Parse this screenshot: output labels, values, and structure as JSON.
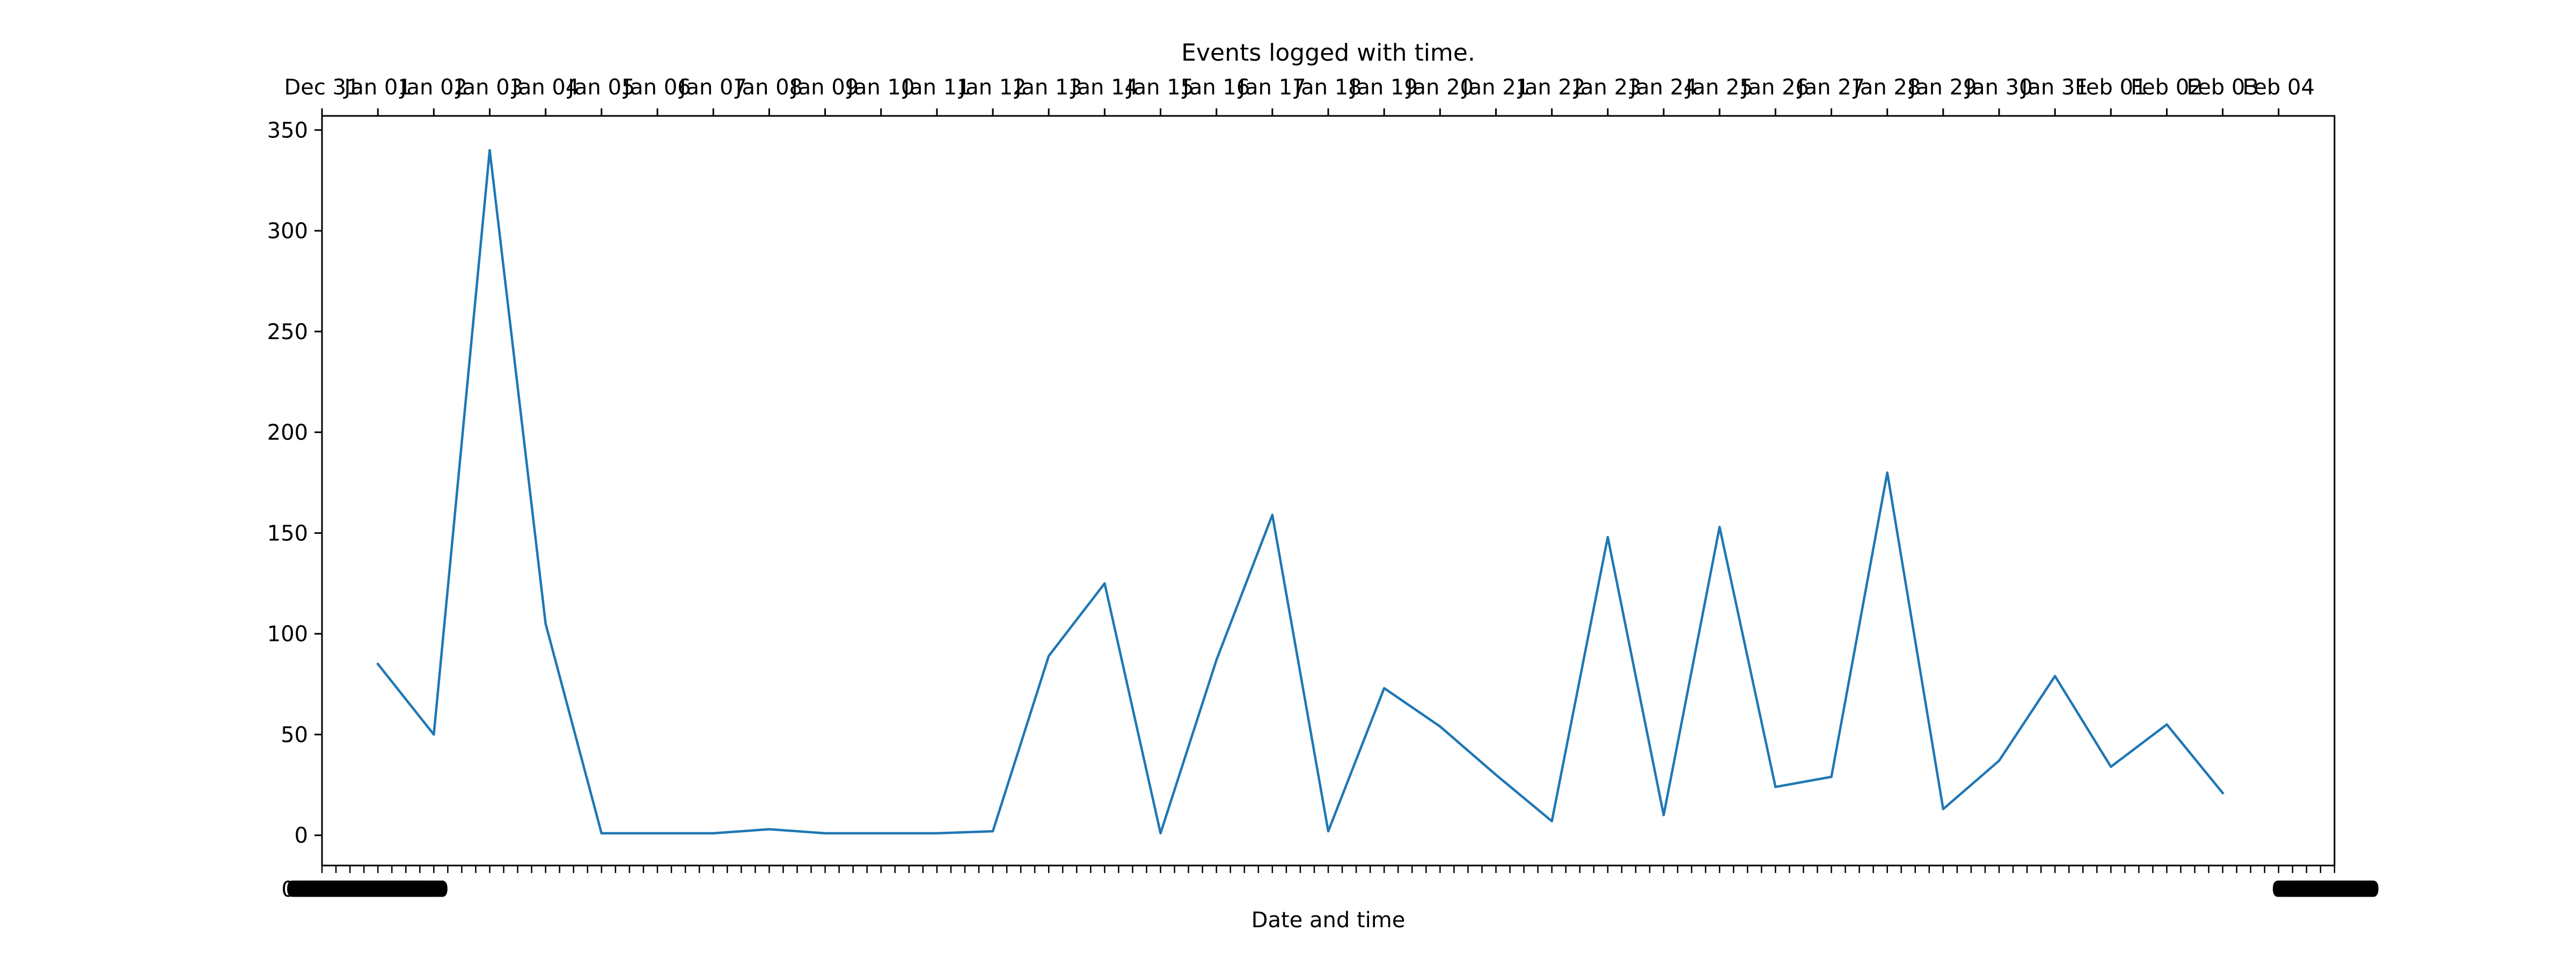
{
  "chart_data": {
    "type": "line",
    "title": "Events logged with time.",
    "xlabel": "Date and time",
    "ylabel": "",
    "grid": false,
    "legend": "none",
    "ylim": [
      -15,
      357
    ],
    "xlim": [
      "Dec 31",
      "Feb 05"
    ],
    "yticks": [
      0,
      50,
      100,
      150,
      200,
      250,
      300,
      350
    ],
    "x_top_ticks": [
      "Dec 31",
      "Jan 01",
      "Jan 02",
      "Jan 03",
      "Jan 04",
      "Jan 05",
      "Jan 06",
      "Jan 07",
      "Jan 08",
      "Jan 09",
      "Jan 10",
      "Jan 11",
      "Jan 12",
      "Jan 13",
      "Jan 14",
      "Jan 15",
      "Jan 16",
      "Jan 17",
      "Jan 18",
      "Jan 19",
      "Jan 20",
      "Jan 21",
      "Jan 22",
      "Jan 23",
      "Jan 24",
      "Jan 25",
      "Jan 26",
      "Jan 27",
      "Jan 28",
      "Jan 29",
      "Jan 30",
      "Jan 31",
      "Feb 01",
      "Feb 02",
      "Feb 03",
      "Feb 04"
    ],
    "x_bottom_tick_labels": [
      "00:00",
      "00:00"
    ],
    "series": [
      {
        "color": "#1f77b4",
        "x": [
          "Jan 01",
          "Jan 02",
          "Jan 03",
          "Jan 04",
          "Jan 05",
          "Jan 06",
          "Jan 07",
          "Jan 08",
          "Jan 09",
          "Jan 10",
          "Jan 11",
          "Jan 12",
          "Jan 13",
          "Jan 14",
          "Jan 15",
          "Jan 16",
          "Jan 17",
          "Jan 18",
          "Jan 19",
          "Jan 20",
          "Jan 21",
          "Jan 22",
          "Jan 23",
          "Jan 24",
          "Jan 25",
          "Jan 26",
          "Jan 27",
          "Jan 28",
          "Jan 29",
          "Jan 30",
          "Jan 31",
          "Feb 01",
          "Feb 02",
          "Feb 03"
        ],
        "values": [
          85,
          50,
          340,
          105,
          1,
          1,
          1,
          3,
          1,
          1,
          1,
          2,
          89,
          125,
          1,
          87,
          159,
          2,
          73,
          54,
          30,
          7,
          148,
          10,
          153,
          24,
          29,
          180,
          13,
          37,
          79,
          34,
          55,
          21
        ]
      }
    ]
  }
}
